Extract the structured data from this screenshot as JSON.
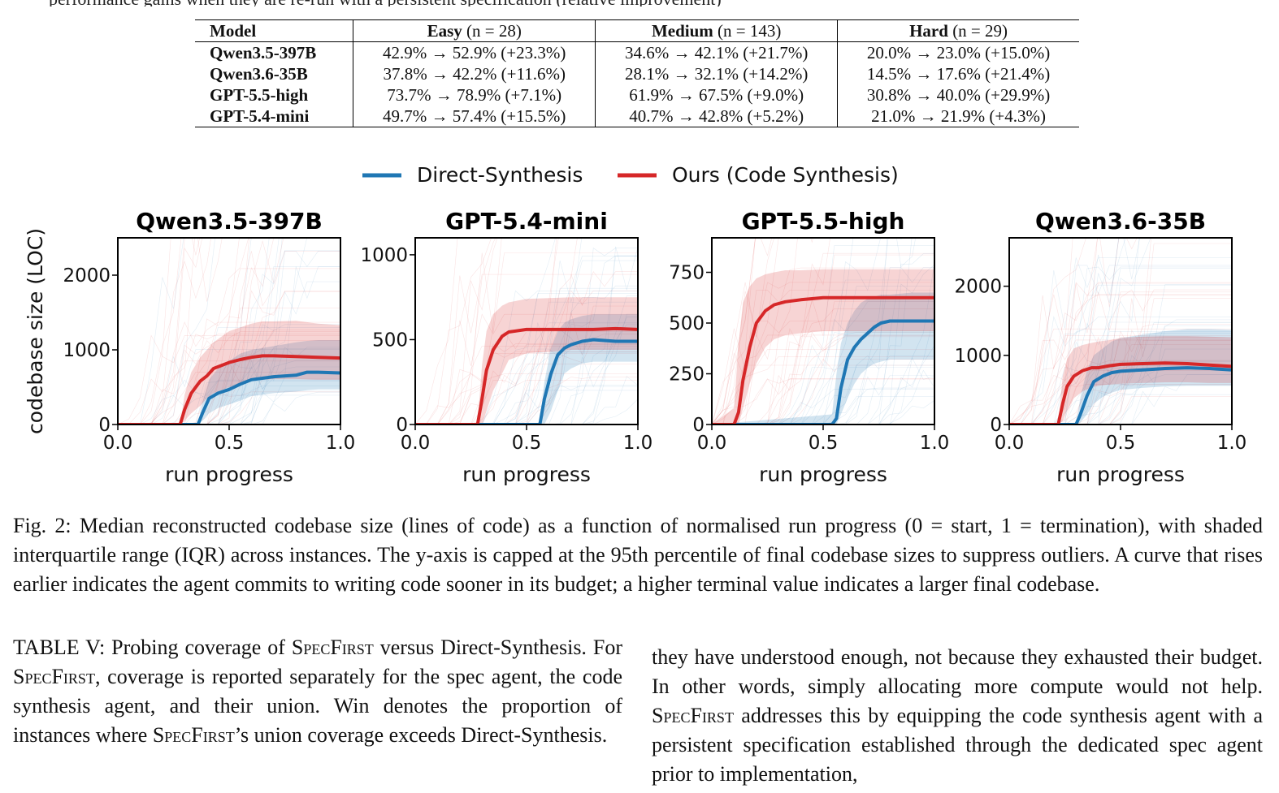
{
  "top_fragment": "performance gains when they are re-run with a persistent specification (relative improvement)",
  "table": {
    "headers": [
      {
        "bold": "Model",
        "rest": ""
      },
      {
        "bold": "Easy",
        "rest": " (n = 28)"
      },
      {
        "bold": "Medium",
        "rest": " (n = 143)"
      },
      {
        "bold": "Hard",
        "rest": " (n = 29)"
      }
    ],
    "rows": [
      {
        "model": "Qwen3.5-397B",
        "easy": "42.9% → 52.9% (+23.3%)",
        "medium": "34.6% → 42.1% (+21.7%)",
        "hard": "20.0% → 23.0% (+15.0%)"
      },
      {
        "model": "Qwen3.6-35B",
        "easy": "37.8% → 42.2% (+11.6%)",
        "medium": "28.1% → 32.1% (+14.2%)",
        "hard": "14.5% → 17.6% (+21.4%)"
      },
      {
        "model": "GPT-5.5-high",
        "easy": "73.7% → 78.9% (+7.1%)",
        "medium": "61.9% → 67.5% (+9.0%)",
        "hard": "30.8% → 40.0% (+29.9%)"
      },
      {
        "model": "GPT-5.4-mini",
        "easy": "49.7% → 57.4% (+15.5%)",
        "medium": "40.7% → 42.8% (+5.2%)",
        "hard": "21.0% → 21.9% (+4.3%)"
      }
    ]
  },
  "figure": {
    "legend": [
      "Direct-Synthesis",
      "Ours (Code Synthesis)"
    ],
    "ylabel": "codebase size (LOC)",
    "xlabel": "run progress",
    "colors": {
      "direct": "#1f77b4",
      "ours": "#d62728"
    }
  },
  "chart_data": [
    {
      "type": "line",
      "title": "Qwen3.5-397B",
      "xlabel": "run progress",
      "ylabel": "codebase size (LOC)",
      "xlim": [
        0,
        1
      ],
      "ylim": [
        0,
        2500
      ],
      "yticks": [
        0,
        1000,
        2000
      ],
      "xticks": [
        0.0,
        0.5,
        1.0
      ],
      "series": [
        {
          "name": "Direct-Synthesis",
          "x": [
            0,
            0.36,
            0.38,
            0.41,
            0.45,
            0.5,
            0.55,
            0.6,
            0.7,
            0.8,
            0.85,
            0.9,
            1.0
          ],
          "values": [
            0,
            0,
            150,
            350,
            420,
            470,
            540,
            600,
            640,
            660,
            700,
            700,
            690
          ],
          "q1": [
            0,
            0,
            50,
            150,
            220,
            270,
            320,
            380,
            420,
            440,
            460,
            470,
            470
          ],
          "q3": [
            0,
            0,
            300,
            600,
            750,
            850,
            950,
            1000,
            1050,
            1100,
            1120,
            1130,
            1130
          ]
        },
        {
          "name": "Ours (Code Synthesis)",
          "x": [
            0,
            0.28,
            0.3,
            0.33,
            0.37,
            0.4,
            0.43,
            0.5,
            0.55,
            0.6,
            0.65,
            0.7,
            0.8,
            0.9,
            1.0
          ],
          "values": [
            0,
            0,
            200,
            420,
            580,
            650,
            750,
            830,
            870,
            900,
            920,
            920,
            910,
            900,
            890
          ],
          "q1": [
            0,
            0,
            50,
            150,
            250,
            350,
            420,
            500,
            550,
            580,
            600,
            610,
            610,
            600,
            600
          ],
          "q3": [
            0,
            0,
            400,
            700,
            900,
            1000,
            1100,
            1250,
            1300,
            1350,
            1380,
            1380,
            1390,
            1350,
            1330
          ]
        }
      ]
    },
    {
      "type": "line",
      "title": "GPT-5.4-mini",
      "xlabel": "run progress",
      "ylabel": "",
      "xlim": [
        0,
        1
      ],
      "ylim": [
        0,
        1100
      ],
      "yticks": [
        0,
        500,
        1000
      ],
      "xticks": [
        0.0,
        0.5,
        1.0
      ],
      "series": [
        {
          "name": "Direct-Synthesis",
          "x": [
            0,
            0.56,
            0.58,
            0.61,
            0.64,
            0.67,
            0.7,
            0.75,
            0.8,
            0.9,
            1.0
          ],
          "values": [
            0,
            0,
            150,
            300,
            410,
            450,
            470,
            490,
            500,
            490,
            490
          ],
          "q1": [
            0,
            0,
            0,
            80,
            200,
            300,
            330,
            360,
            370,
            370,
            370
          ],
          "q3": [
            0,
            0,
            250,
            450,
            550,
            600,
            620,
            640,
            650,
            650,
            650
          ]
        },
        {
          "name": "Ours (Code Synthesis)",
          "x": [
            0,
            0.28,
            0.3,
            0.32,
            0.35,
            0.39,
            0.42,
            0.5,
            0.6,
            0.7,
            0.8,
            0.9,
            1.0
          ],
          "values": [
            0,
            0,
            150,
            320,
            440,
            520,
            545,
            560,
            560,
            560,
            560,
            565,
            560
          ],
          "q1": [
            0,
            0,
            0,
            80,
            200,
            300,
            380,
            420,
            430,
            440,
            440,
            440,
            440
          ],
          "q3": [
            0,
            0,
            350,
            550,
            650,
            700,
            720,
            740,
            745,
            750,
            750,
            750,
            750
          ]
        }
      ]
    },
    {
      "type": "line",
      "title": "GPT-5.5-high",
      "xlabel": "run progress",
      "ylabel": "",
      "xlim": [
        0,
        1
      ],
      "ylim": [
        0,
        920
      ],
      "yticks": [
        0,
        250,
        500,
        750
      ],
      "xticks": [
        0.0,
        0.5,
        1.0
      ],
      "series": [
        {
          "name": "Direct-Synthesis",
          "x": [
            0,
            0.54,
            0.56,
            0.58,
            0.61,
            0.64,
            0.67,
            0.7,
            0.73,
            0.76,
            0.8,
            0.9,
            1.0
          ],
          "values": [
            0,
            0,
            30,
            180,
            320,
            380,
            420,
            450,
            480,
            500,
            510,
            510,
            510
          ],
          "q1": [
            0,
            0,
            0,
            50,
            130,
            200,
            250,
            280,
            300,
            310,
            320,
            320,
            320
          ],
          "q3": [
            0,
            50,
            250,
            400,
            500,
            560,
            600,
            620,
            630,
            640,
            640,
            650,
            650
          ]
        },
        {
          "name": "Ours (Code Synthesis)",
          "x": [
            0,
            0.1,
            0.12,
            0.14,
            0.17,
            0.2,
            0.24,
            0.28,
            0.33,
            0.4,
            0.5,
            0.7,
            1.0
          ],
          "values": [
            0,
            0,
            60,
            220,
            380,
            500,
            560,
            590,
            605,
            615,
            625,
            625,
            625
          ],
          "q1": [
            0,
            0,
            0,
            80,
            200,
            300,
            380,
            420,
            440,
            450,
            460,
            460,
            460
          ],
          "q3": [
            0,
            80,
            400,
            600,
            680,
            720,
            740,
            750,
            760,
            760,
            765,
            765,
            765
          ]
        }
      ]
    },
    {
      "type": "line",
      "title": "Qwen3.6-35B",
      "xlabel": "run progress",
      "ylabel": "",
      "xlim": [
        0,
        1
      ],
      "ylim": [
        0,
        2700
      ],
      "yticks": [
        0,
        1000,
        2000
      ],
      "xticks": [
        0.0,
        0.5,
        1.0
      ],
      "series": [
        {
          "name": "Direct-Synthesis",
          "x": [
            0,
            0.3,
            0.32,
            0.35,
            0.38,
            0.42,
            0.46,
            0.5,
            0.6,
            0.7,
            0.8,
            0.9,
            1.0
          ],
          "values": [
            0,
            0,
            150,
            420,
            620,
            700,
            750,
            770,
            790,
            810,
            820,
            810,
            790
          ],
          "q1": [
            0,
            0,
            30,
            150,
            300,
            400,
            460,
            500,
            530,
            550,
            560,
            560,
            560
          ],
          "q3": [
            0,
            0,
            400,
            800,
            1000,
            1100,
            1200,
            1250,
            1300,
            1350,
            1380,
            1380,
            1370
          ]
        },
        {
          "name": "Ours (Code Synthesis)",
          "x": [
            0,
            0.22,
            0.24,
            0.26,
            0.29,
            0.33,
            0.37,
            0.4,
            0.45,
            0.5,
            0.6,
            0.7,
            0.8,
            0.9,
            1.0
          ],
          "values": [
            0,
            0,
            300,
            550,
            700,
            780,
            820,
            820,
            850,
            870,
            880,
            890,
            880,
            860,
            840
          ],
          "q1": [
            0,
            0,
            50,
            200,
            380,
            480,
            540,
            560,
            580,
            590,
            600,
            610,
            610,
            600,
            600
          ],
          "q3": [
            0,
            0,
            700,
            950,
            1100,
            1150,
            1180,
            1200,
            1220,
            1250,
            1270,
            1280,
            1280,
            1270,
            1260
          ]
        }
      ]
    }
  ],
  "caption": "Fig. 2: Median reconstructed codebase size (lines of code) as a function of normalised run progress (0 = start, 1 = termination), with shaded interquartile range (IQR) across instances. The y-axis is capped at the 95th percentile of final codebase sizes to suppress outliers. A curve that rises earlier indicates the agent commits to writing code sooner in its budget; a higher terminal value indicates a larger final codebase.",
  "table5_caption": {
    "p1": "TABLE V: Probing coverage of ",
    "sc1": "SpecFirst",
    "p2": " versus Direct-Synthesis. For ",
    "sc2": "SpecFirst",
    "p3": ", coverage is reported separately for the spec agent, the code synthesis agent, and their union. Win denotes the proportion of instances where ",
    "sc3": "SpecFirst",
    "p4": "’s union coverage exceeds Direct-Synthesis."
  },
  "right_column": {
    "p1": "they have understood enough, not because they exhausted their budget. In other words, simply allocating more compute would not help. ",
    "sc1": "SpecFirst",
    "p2": " addresses this by equipping the code synthesis agent with a persistent specification established through the dedicated spec agent prior to implementation,"
  }
}
